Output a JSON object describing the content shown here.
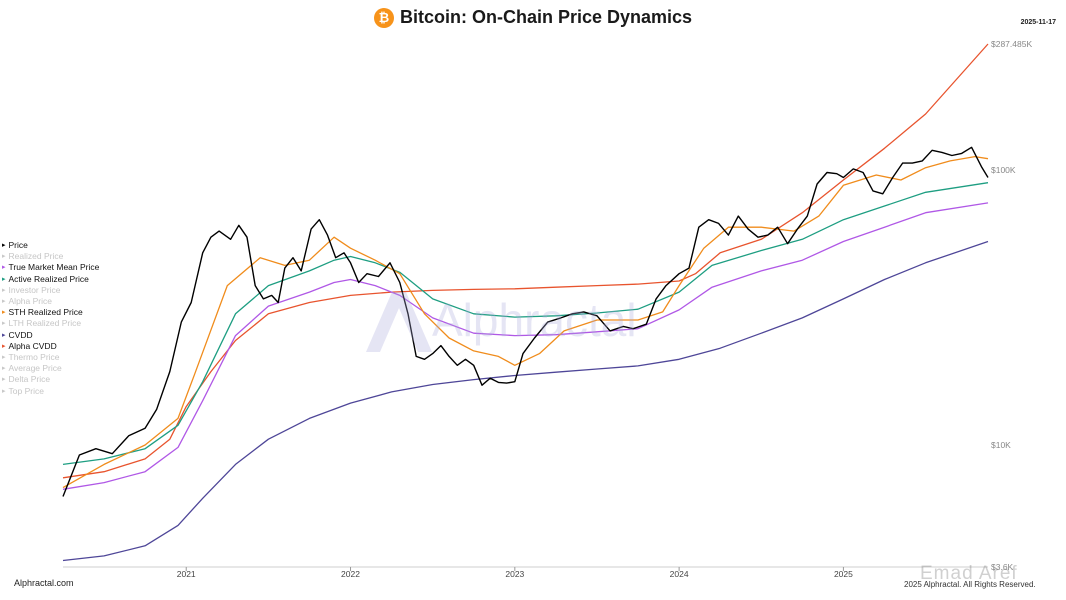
{
  "header": {
    "title": "Bitcoin: On-Chain Price Dynamics",
    "date": "2025-11-17",
    "btc_glyph": "₿"
  },
  "footer": {
    "brand": "Alphractal.com",
    "copyright": "2025 Alphractal. All Rights Reserved.",
    "watermark": "Alphractal",
    "author_mark": "Emad Aref"
  },
  "legend": [
    {
      "label": "Price",
      "color": "#000000",
      "active": true
    },
    {
      "label": "Realized Price",
      "color": "#c8c8c8",
      "active": false
    },
    {
      "label": "True Market Mean Price",
      "color": "#b058e6",
      "active": true
    },
    {
      "label": "Active Realized Price",
      "color": "#1e9e82",
      "active": true
    },
    {
      "label": "Investor Price",
      "color": "#c8c8c8",
      "active": false
    },
    {
      "label": "Alpha Price",
      "color": "#c8c8c8",
      "active": false
    },
    {
      "label": "STH Realized Price",
      "color": "#f08c1c",
      "active": true
    },
    {
      "label": "LTH Realized Price",
      "color": "#c8c8c8",
      "active": false
    },
    {
      "label": "CVDD",
      "color": "#4e4698",
      "active": true
    },
    {
      "label": "Alpha CVDD",
      "color": "#e8542e",
      "active": true
    },
    {
      "label": "Thermo Price",
      "color": "#c8c8c8",
      "active": false
    },
    {
      "label": "Average Price",
      "color": "#c8c8c8",
      "active": false
    },
    {
      "label": "Delta Price",
      "color": "#c8c8c8",
      "active": false
    },
    {
      "label": "Top Price",
      "color": "#c8c8c8",
      "active": false
    }
  ],
  "chart_data": {
    "type": "line",
    "title": "Bitcoin: On-Chain Price Dynamics",
    "yscale": "log",
    "ylim": [
      3600,
      287485
    ],
    "xlim": [
      2020.25,
      2025.88
    ],
    "y_ticks": [
      {
        "label": "$287.485K",
        "value": 287485
      },
      {
        "label": "$100K",
        "value": 100000
      },
      {
        "label": "$10K",
        "value": 10000
      },
      {
        "label": "$3.6K",
        "value": 3600
      }
    ],
    "x_ticks": [
      {
        "label": "2021",
        "value": 2021.0
      },
      {
        "label": "2022",
        "value": 2022.0
      },
      {
        "label": "2023",
        "value": 2023.0
      },
      {
        "label": "2024",
        "value": 2024.0
      },
      {
        "label": "2025",
        "value": 2025.0
      }
    ],
    "series": [
      {
        "name": "Alpha CVDD",
        "color": "#e8542e",
        "width": 1.3,
        "x": [
          2020.25,
          2020.5,
          2020.75,
          2020.9,
          2021.0,
          2021.15,
          2021.3,
          2021.5,
          2021.75,
          2022.0,
          2022.25,
          2022.5,
          2022.75,
          2023.0,
          2023.25,
          2023.5,
          2023.75,
          2024.0,
          2024.1,
          2024.25,
          2024.5,
          2024.75,
          2025.0,
          2025.25,
          2025.5,
          2025.88
        ],
        "values": [
          7600,
          8000,
          8900,
          10500,
          13800,
          18500,
          24000,
          30000,
          33000,
          35000,
          36000,
          36500,
          36800,
          37000,
          37500,
          38000,
          38500,
          39500,
          42000,
          50000,
          56000,
          70000,
          92000,
          120000,
          160000,
          287485
        ]
      },
      {
        "name": "True Market Mean Price",
        "color": "#b058e6",
        "width": 1.3,
        "x": [
          2020.25,
          2020.5,
          2020.75,
          2020.95,
          2021.1,
          2021.3,
          2021.5,
          2021.75,
          2021.9,
          2022.0,
          2022.15,
          2022.3,
          2022.5,
          2022.75,
          2023.0,
          2023.25,
          2023.5,
          2023.75,
          2024.0,
          2024.2,
          2024.5,
          2024.75,
          2025.0,
          2025.25,
          2025.5,
          2025.88
        ],
        "values": [
          6900,
          7300,
          8000,
          9800,
          14500,
          25000,
          32000,
          36000,
          39000,
          40000,
          38000,
          35000,
          29000,
          25500,
          25000,
          25200,
          25800,
          26500,
          31000,
          37500,
          43000,
          47000,
          55000,
          62000,
          70000,
          76000
        ]
      },
      {
        "name": "Active Realized Price",
        "color": "#1e9e82",
        "width": 1.3,
        "x": [
          2020.25,
          2020.5,
          2020.75,
          2020.95,
          2021.1,
          2021.3,
          2021.5,
          2021.75,
          2021.9,
          2022.0,
          2022.15,
          2022.3,
          2022.5,
          2022.75,
          2023.0,
          2023.25,
          2023.5,
          2023.75,
          2024.0,
          2024.2,
          2024.5,
          2024.75,
          2025.0,
          2025.25,
          2025.5,
          2025.88
        ],
        "values": [
          8500,
          8900,
          9700,
          11800,
          17000,
          30000,
          38000,
          43000,
          47000,
          48500,
          46000,
          42500,
          34000,
          30000,
          29200,
          29500,
          30200,
          31200,
          36000,
          45000,
          51000,
          56000,
          66000,
          74000,
          83000,
          90000
        ]
      },
      {
        "name": "CVDD",
        "color": "#4e4698",
        "width": 1.3,
        "x": [
          2020.25,
          2020.5,
          2020.75,
          2020.95,
          2021.1,
          2021.3,
          2021.5,
          2021.75,
          2022.0,
          2022.25,
          2022.5,
          2022.75,
          2023.0,
          2023.25,
          2023.5,
          2023.75,
          2024.0,
          2024.25,
          2024.5,
          2024.75,
          2025.0,
          2025.25,
          2025.5,
          2025.88
        ],
        "values": [
          3800,
          3950,
          4300,
          5100,
          6400,
          8500,
          10500,
          12500,
          14200,
          15600,
          16600,
          17300,
          17900,
          18400,
          18900,
          19400,
          20500,
          22500,
          25500,
          29000,
          34000,
          40000,
          46000,
          55000
        ]
      },
      {
        "name": "STH Realized Price",
        "color": "#f08c1c",
        "width": 1.3,
        "x": [
          2020.25,
          2020.5,
          2020.75,
          2020.95,
          2021.05,
          2021.25,
          2021.45,
          2021.6,
          2021.75,
          2021.9,
          2022.0,
          2022.15,
          2022.3,
          2022.45,
          2022.6,
          2022.75,
          2022.9,
          2023.0,
          2023.15,
          2023.3,
          2023.5,
          2023.75,
          2023.9,
          2024.0,
          2024.15,
          2024.3,
          2024.5,
          2024.7,
          2024.85,
          2025.0,
          2025.2,
          2025.35,
          2025.5,
          2025.65,
          2025.8,
          2025.88
        ],
        "values": [
          7000,
          8500,
          10000,
          12500,
          18000,
          38000,
          48000,
          45000,
          47000,
          57000,
          52000,
          47000,
          42000,
          30000,
          24500,
          22000,
          21000,
          19500,
          21500,
          26000,
          28500,
          28500,
          30500,
          38000,
          52000,
          62000,
          62000,
          60000,
          68000,
          88000,
          96000,
          92000,
          102000,
          108000,
          112000,
          110000
        ]
      },
      {
        "name": "Price",
        "color": "#000000",
        "width": 1.4,
        "x": [
          2020.25,
          2020.35,
          2020.45,
          2020.55,
          2020.65,
          2020.75,
          2020.82,
          2020.9,
          2020.97,
          2021.03,
          2021.1,
          2021.15,
          2021.2,
          2021.27,
          2021.32,
          2021.37,
          2021.42,
          2021.47,
          2021.52,
          2021.56,
          2021.6,
          2021.65,
          2021.7,
          2021.76,
          2021.81,
          2021.86,
          2021.91,
          2021.96,
          2022.0,
          2022.05,
          2022.1,
          2022.17,
          2022.24,
          2022.3,
          2022.35,
          2022.4,
          2022.45,
          2022.5,
          2022.55,
          2022.6,
          2022.65,
          2022.7,
          2022.75,
          2022.8,
          2022.85,
          2022.9,
          2022.95,
          2023.0,
          2023.05,
          2023.12,
          2023.2,
          2023.28,
          2023.35,
          2023.42,
          2023.5,
          2023.58,
          2023.66,
          2023.72,
          2023.8,
          2023.86,
          2023.92,
          2024.0,
          2024.06,
          2024.12,
          2024.18,
          2024.24,
          2024.3,
          2024.36,
          2024.42,
          2024.48,
          2024.54,
          2024.6,
          2024.66,
          2024.72,
          2024.78,
          2024.84,
          2024.9,
          2024.96,
          2025.0,
          2025.06,
          2025.12,
          2025.18,
          2025.24,
          2025.3,
          2025.36,
          2025.42,
          2025.48,
          2025.54,
          2025.6,
          2025.66,
          2025.72,
          2025.78,
          2025.84,
          2025.88
        ],
        "values": [
          6500,
          9200,
          9700,
          9300,
          10800,
          11500,
          13500,
          18500,
          28000,
          33000,
          50000,
          57000,
          60000,
          56000,
          63000,
          57000,
          38000,
          34000,
          35000,
          33000,
          44000,
          48000,
          43000,
          61000,
          66000,
          58000,
          48000,
          50000,
          46000,
          39000,
          42000,
          41000,
          46000,
          39000,
          30000,
          21000,
          20500,
          21500,
          23000,
          21000,
          19500,
          20500,
          19500,
          16500,
          17500,
          16900,
          16800,
          17000,
          21500,
          24500,
          28000,
          29000,
          30000,
          30500,
          29500,
          26000,
          27000,
          26500,
          27500,
          34000,
          38000,
          42000,
          44000,
          62000,
          66000,
          64000,
          58000,
          68000,
          61000,
          57000,
          58000,
          62000,
          54000,
          61000,
          68000,
          89000,
          98000,
          97000,
          94000,
          101000,
          98000,
          84000,
          82000,
          94000,
          106000,
          106000,
          108000,
          118000,
          116000,
          113000,
          115000,
          121000,
          103000,
          94000
        ]
      }
    ]
  }
}
